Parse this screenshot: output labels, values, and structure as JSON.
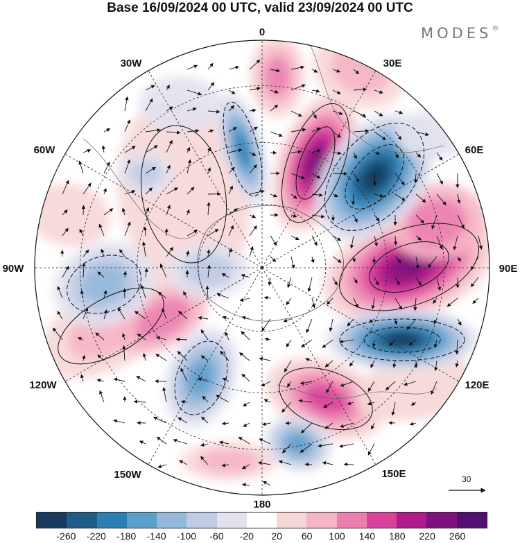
{
  "title": "Base 16/09/2024 00 UTC, valid 23/09/2024 00 UTC",
  "brand": "MODES",
  "brand_mark": "®",
  "longitude_labels": {
    "lon_0": "0",
    "lon_30e": "30E",
    "lon_60e": "60E",
    "lon_90e": "90E",
    "lon_120e": "120E",
    "lon_150e": "150E",
    "lon_180": "180",
    "lon_150w": "150W",
    "lon_120w": "120W",
    "lon_90w": "90W",
    "lon_60w": "60W",
    "lon_30w": "30W"
  },
  "reference_vector": "30",
  "colorbar": {
    "ticks": [
      "-260",
      "-220",
      "-180",
      "-140",
      "-100",
      "-60",
      "-20",
      "20",
      "60",
      "100",
      "140",
      "180",
      "220",
      "260"
    ],
    "colors": [
      "#173b5c",
      "#1f5c86",
      "#2d7fb2",
      "#5d9fcb",
      "#93b8da",
      "#bfcbe4",
      "#e2e2ef",
      "#ffffff",
      "#f7d6d6",
      "#f5b5c5",
      "#ec7fb0",
      "#d9429b",
      "#b11b8a",
      "#7e127c",
      "#541070"
    ]
  },
  "icons": {
    "vector": "arrow-icon"
  }
}
